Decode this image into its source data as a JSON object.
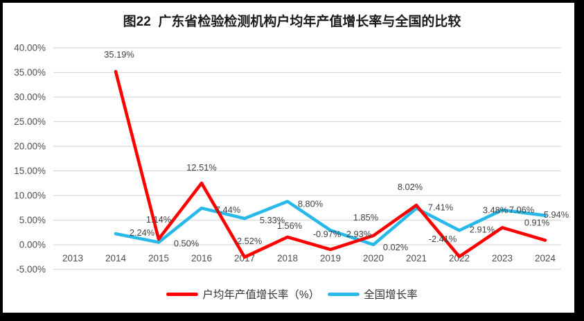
{
  "chart_data": {
    "type": "line",
    "title": "图22  广东省检验检测机构户均年产值增长率与全国的比较",
    "categories": [
      "2013",
      "2014",
      "2015",
      "2016",
      "2017",
      "2018",
      "2019",
      "2020",
      "2021",
      "2022",
      "2023",
      "2024"
    ],
    "series": [
      {
        "name": "户均年产值增长率（%）",
        "color": "#FF0000",
        "values": [
          null,
          35.19,
          1.14,
          12.51,
          -2.52,
          1.56,
          -0.97,
          1.85,
          8.02,
          -2.41,
          3.48,
          0.91
        ],
        "labels": [
          "",
          "35.19%",
          "1.14%",
          "12.51%",
          "-2.52%",
          "1.56%",
          "-0.97%",
          "1.85%",
          "8.02%",
          "-2.41%",
          "3.48%",
          "0.91%"
        ]
      },
      {
        "name": "全国增长率",
        "color": "#29B9E8",
        "values": [
          null,
          2.24,
          0.5,
          7.44,
          5.33,
          8.8,
          2.93,
          0.02,
          7.41,
          2.91,
          7.06,
          5.94
        ],
        "labels": [
          "",
          "2.24%",
          "0.50%",
          "7.44%",
          "5.33%",
          "8.80%",
          "2.93%",
          "0.02%",
          "7.41%",
          "2.91%",
          "7.06%",
          "5.94%"
        ]
      }
    ],
    "y_axis": {
      "min": -5,
      "max": 40,
      "step": 5,
      "tick_labels": [
        "40.00%",
        "35.00%",
        "30.00%",
        "25.00%",
        "20.00%",
        "15.00%",
        "10.00%",
        "5.00%",
        "0.00%",
        "-5.00%"
      ]
    },
    "grid": true,
    "legend_position": "bottom",
    "colors": {
      "gridline": "#D9D9D9",
      "tick_text": "#4d4d4d",
      "label_text": "#3f3f3f"
    }
  }
}
